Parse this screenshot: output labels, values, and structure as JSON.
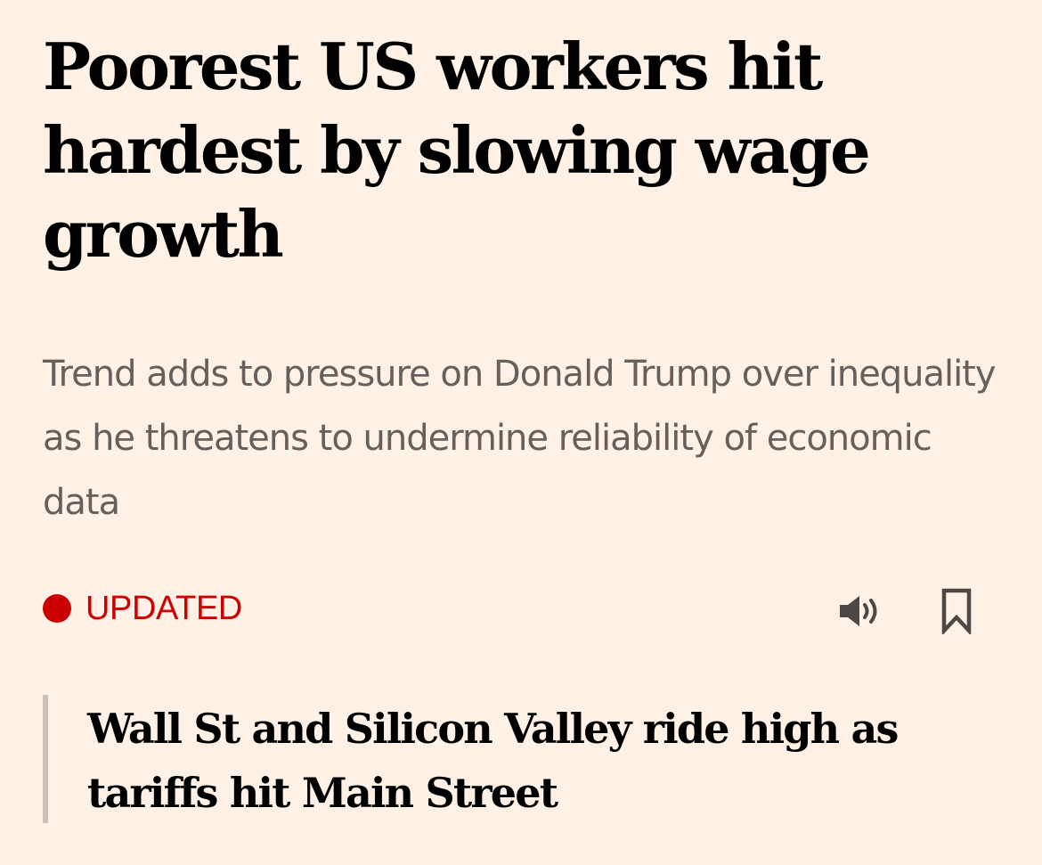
{
  "article": {
    "headline": "Poorest US workers hit hardest by slowing wage growth",
    "standfirst": "Trend adds to pressure on Donald Trump over inequality as he threatens to undermine reliability of economic data",
    "status_label": "UPDATED",
    "related_headline": "Wall St and Silicon Valley ride high as tariffs hit Main Street"
  },
  "icons": {
    "status": "red-dot-icon",
    "audio": "speaker-icon",
    "save": "bookmark-icon"
  },
  "colors": {
    "background": "#FFF1E5",
    "headline": "#000000",
    "standfirst": "#66605C",
    "status": "#CC0000",
    "icon": "#4D4845",
    "related_border": "#CCC1B7"
  }
}
